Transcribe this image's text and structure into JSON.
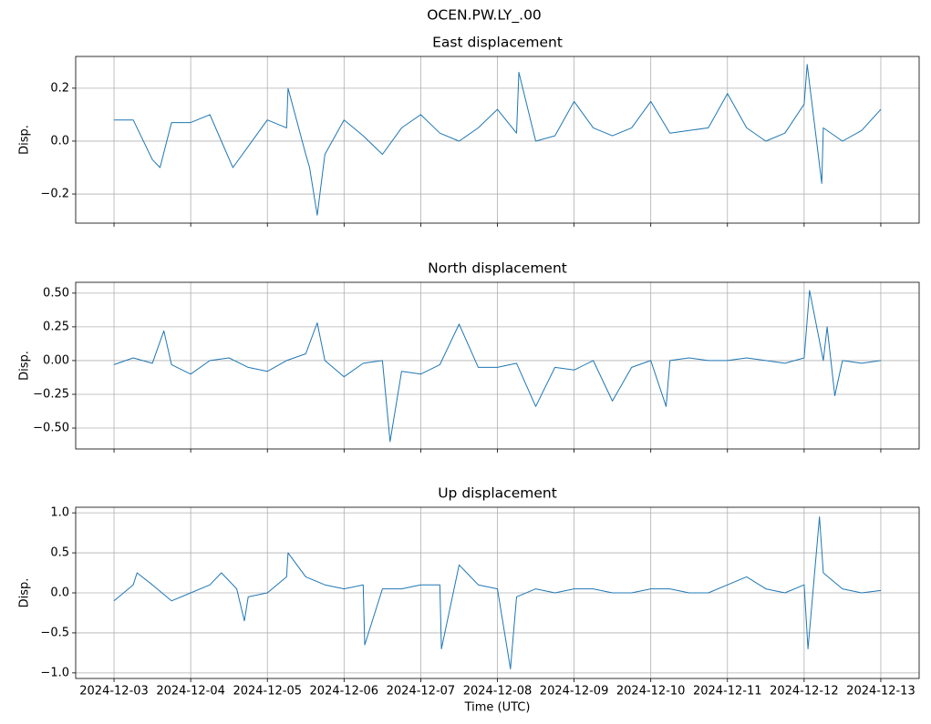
{
  "title": "OCEN.PW.LY_.00",
  "chart_data": [
    {
      "type": "line",
      "title": "East displacement",
      "ylabel": "Disp.",
      "color": "#1f77b4",
      "grid": true,
      "xtick_labels": false,
      "xlim": [
        -0.5,
        10.5
      ],
      "ylim": [
        -0.31,
        0.32
      ],
      "xticks": [
        0,
        1,
        2,
        3,
        4,
        5,
        6,
        7,
        8,
        9,
        10
      ],
      "yticks": [
        {
          "value": -0.2,
          "label": "−0.2"
        },
        {
          "value": 0,
          "label": "0.0"
        },
        0.2
      ],
      "x": [
        0,
        0.25,
        0.5,
        0.6,
        0.75,
        1,
        1.25,
        1.4,
        1.55,
        1.75,
        2,
        2.25,
        2.27,
        2.5,
        2.55,
        2.65,
        2.75,
        3,
        3.25,
        3.5,
        3.75,
        4,
        4.25,
        4.5,
        4.75,
        5,
        5.25,
        5.28,
        5.5,
        5.75,
        6,
        6.25,
        6.5,
        6.75,
        7,
        7.25,
        7.5,
        7.75,
        8,
        8.25,
        8.5,
        8.75,
        9,
        9.04,
        9.23,
        9.25,
        9.5,
        9.75,
        10
      ],
      "values": [
        0.08,
        0.08,
        -0.07,
        -0.1,
        0.07,
        0.07,
        0.1,
        0,
        -0.1,
        -0.02,
        0.08,
        0.05,
        0.2,
        -0.05,
        -0.1,
        -0.28,
        -0.05,
        0.08,
        0.02,
        -0.05,
        0.05,
        0.1,
        0.03,
        0,
        0.05,
        0.12,
        0.03,
        0.26,
        0,
        0.02,
        0.15,
        0.05,
        0.02,
        0.05,
        0.15,
        0.03,
        0.04,
        0.05,
        0.18,
        0.05,
        0,
        0.03,
        0.14,
        0.29,
        -0.16,
        0.05,
        0,
        0.04,
        0.12
      ]
    },
    {
      "type": "line",
      "title": "North displacement",
      "ylabel": "Disp.",
      "color": "#1f77b4",
      "grid": true,
      "xtick_labels": false,
      "xlim": [
        -0.5,
        10.5
      ],
      "ylim": [
        -0.655,
        0.58
      ],
      "xticks": [
        0,
        1,
        2,
        3,
        4,
        5,
        6,
        7,
        8,
        9,
        10
      ],
      "yticks": [
        {
          "value": -0.5,
          "label": "−0.50"
        },
        {
          "value": -0.25,
          "label": "−0.25"
        },
        {
          "value": 0,
          "label": "0.00"
        },
        0.25,
        {
          "value": 0.5,
          "label": "0.50"
        }
      ],
      "x": [
        0,
        0.25,
        0.5,
        0.65,
        0.75,
        1,
        1.25,
        1.5,
        1.75,
        2,
        2.25,
        2.5,
        2.65,
        2.75,
        3,
        3.25,
        3.5,
        3.6,
        3.75,
        4,
        4.25,
        4.5,
        4.75,
        5,
        5.25,
        5.5,
        5.75,
        6,
        6.25,
        6.5,
        6.75,
        7,
        7.2,
        7.25,
        7.5,
        7.75,
        8,
        8.25,
        8.5,
        8.75,
        9,
        9.07,
        9.25,
        9.3,
        9.4,
        9.5,
        9.75,
        10
      ],
      "values": [
        -0.03,
        0.02,
        -0.02,
        0.22,
        -0.03,
        -0.1,
        0,
        0.02,
        -0.05,
        -0.08,
        0,
        0.05,
        0.28,
        0,
        -0.12,
        -0.02,
        0,
        -0.6,
        -0.08,
        -0.1,
        -0.03,
        0.27,
        -0.05,
        -0.05,
        -0.02,
        -0.34,
        -0.05,
        -0.07,
        0,
        -0.3,
        -0.05,
        0,
        -0.34,
        0,
        0.02,
        0,
        0,
        0.02,
        0,
        -0.02,
        0.02,
        0.52,
        0,
        0.25,
        -0.26,
        0,
        -0.02,
        0
      ]
    },
    {
      "type": "line",
      "title": "Up displacement",
      "ylabel": "Disp.",
      "xlabel": "Time (UTC)",
      "color": "#1f77b4",
      "grid": true,
      "xtick_labels": true,
      "xlim": [
        -0.5,
        10.5
      ],
      "ylim": [
        -1.07,
        1.07
      ],
      "xticks": [
        {
          "value": 0,
          "label": "2024-12-03"
        },
        {
          "value": 1,
          "label": "2024-12-04"
        },
        {
          "value": 2,
          "label": "2024-12-05"
        },
        {
          "value": 3,
          "label": "2024-12-06"
        },
        {
          "value": 4,
          "label": "2024-12-07"
        },
        {
          "value": 5,
          "label": "2024-12-08"
        },
        {
          "value": 6,
          "label": "2024-12-09"
        },
        {
          "value": 7,
          "label": "2024-12-10"
        },
        {
          "value": 8,
          "label": "2024-12-11"
        },
        {
          "value": 9,
          "label": "2024-12-12"
        },
        {
          "value": 10,
          "label": "2024-12-13"
        }
      ],
      "yticks": [
        {
          "value": -1,
          "label": "−1.0"
        },
        {
          "value": -0.5,
          "label": "−0.5"
        },
        {
          "value": 0,
          "label": "0.0"
        },
        0.5,
        {
          "value": 1,
          "label": "1.0"
        }
      ],
      "x": [
        0,
        0.25,
        0.3,
        0.5,
        0.75,
        1,
        1.25,
        1.4,
        1.6,
        1.7,
        1.75,
        2,
        2.25,
        2.27,
        2.5,
        2.75,
        3,
        3.25,
        3.27,
        3.5,
        3.75,
        4,
        4.25,
        4.27,
        4.5,
        4.75,
        5,
        5.17,
        5.25,
        5.5,
        5.75,
        6,
        6.25,
        6.5,
        6.75,
        7,
        7.25,
        7.5,
        7.75,
        8,
        8.25,
        8.5,
        8.75,
        9,
        9.05,
        9.2,
        9.25,
        9.5,
        9.75,
        10
      ],
      "values": [
        -0.1,
        0.1,
        0.25,
        0.1,
        -0.1,
        0,
        0.1,
        0.25,
        0.05,
        -0.35,
        -0.05,
        0,
        0.2,
        0.5,
        0.2,
        0.1,
        0.05,
        0.1,
        -0.65,
        0.05,
        0.05,
        0.1,
        0.1,
        -0.7,
        0.35,
        0.1,
        0.05,
        -0.95,
        -0.05,
        0.05,
        0,
        0.05,
        0.05,
        0,
        0,
        0.05,
        0.05,
        0,
        0,
        0.1,
        0.2,
        0.05,
        0,
        0.1,
        -0.7,
        0.95,
        0.25,
        0.05,
        0,
        0.03
      ]
    }
  ]
}
